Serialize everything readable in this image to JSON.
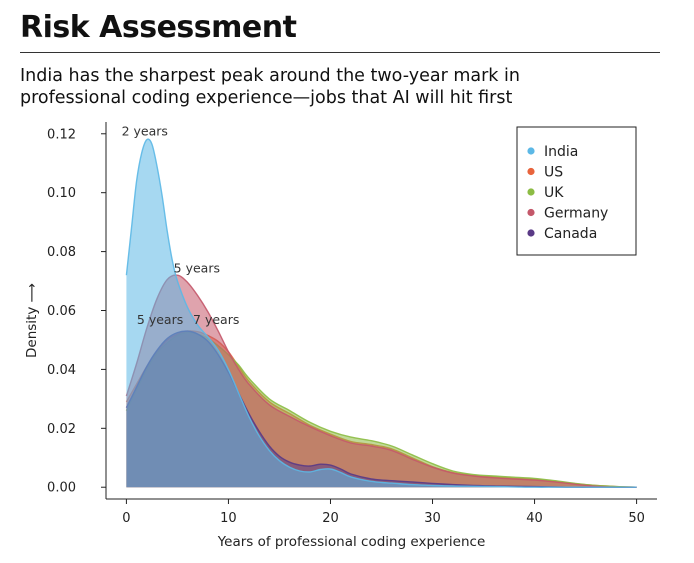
{
  "header": {
    "title": "Risk Assessment",
    "subtitle_line1": "India has the sharpest peak around the two-year mark in",
    "subtitle_line2": "professional coding experience—jobs that AI will hit first"
  },
  "chart_data": {
    "type": "area",
    "xlabel": "Years of professional coding experience",
    "ylabel": "Density ⟶",
    "xlim": [
      -2,
      52
    ],
    "ylim": [
      -0.004,
      0.124
    ],
    "x_ticks": [
      0,
      10,
      20,
      30,
      40,
      50
    ],
    "y_ticks": [
      0.0,
      0.02,
      0.04,
      0.06,
      0.08,
      0.1,
      0.12
    ],
    "legend_position": "top-right",
    "grid": false,
    "series": [
      {
        "name": "US",
        "color": "#e8643c",
        "points": [
          [
            0,
            0.029
          ],
          [
            1,
            0.035
          ],
          [
            2,
            0.041
          ],
          [
            3,
            0.046
          ],
          [
            4,
            0.05
          ],
          [
            5,
            0.052
          ],
          [
            6,
            0.053
          ],
          [
            7,
            0.0528
          ],
          [
            8,
            0.0515
          ],
          [
            9,
            0.0495
          ],
          [
            10,
            0.046
          ],
          [
            11,
            0.041
          ],
          [
            12,
            0.036
          ],
          [
            14,
            0.029
          ],
          [
            16,
            0.025
          ],
          [
            18,
            0.021
          ],
          [
            20,
            0.018
          ],
          [
            22,
            0.0155
          ],
          [
            24,
            0.0145
          ],
          [
            26,
            0.013
          ],
          [
            28,
            0.01
          ],
          [
            30,
            0.007
          ],
          [
            32,
            0.005
          ],
          [
            34,
            0.004
          ],
          [
            36,
            0.0035
          ],
          [
            38,
            0.003
          ],
          [
            40,
            0.0027
          ],
          [
            42,
            0.002
          ],
          [
            44,
            0.0012
          ],
          [
            46,
            0.0006
          ],
          [
            48,
            0.0002
          ],
          [
            50,
            0.0
          ]
        ]
      },
      {
        "name": "UK",
        "color": "#8cbc44",
        "points": [
          [
            0,
            0.026
          ],
          [
            1,
            0.033
          ],
          [
            2,
            0.04
          ],
          [
            3,
            0.0455
          ],
          [
            4,
            0.049
          ],
          [
            5,
            0.0515
          ],
          [
            6,
            0.0525
          ],
          [
            7,
            0.052
          ],
          [
            8,
            0.0505
          ],
          [
            9,
            0.048
          ],
          [
            10,
            0.045
          ],
          [
            11,
            0.0415
          ],
          [
            12,
            0.037
          ],
          [
            14,
            0.03
          ],
          [
            16,
            0.026
          ],
          [
            18,
            0.022
          ],
          [
            20,
            0.019
          ],
          [
            22,
            0.017
          ],
          [
            24,
            0.0158
          ],
          [
            26,
            0.014
          ],
          [
            28,
            0.011
          ],
          [
            30,
            0.008
          ],
          [
            32,
            0.0055
          ],
          [
            34,
            0.0043
          ],
          [
            36,
            0.0038
          ],
          [
            38,
            0.0034
          ],
          [
            40,
            0.003
          ],
          [
            42,
            0.0022
          ],
          [
            44,
            0.0013
          ],
          [
            46,
            0.0006
          ],
          [
            48,
            0.0002
          ],
          [
            50,
            0.0
          ]
        ]
      },
      {
        "name": "Germany",
        "color": "#c4586a",
        "points": [
          [
            0,
            0.031
          ],
          [
            1,
            0.042
          ],
          [
            2,
            0.054
          ],
          [
            3,
            0.064
          ],
          [
            4,
            0.0705
          ],
          [
            5,
            0.072
          ],
          [
            6,
            0.0695
          ],
          [
            7,
            0.065
          ],
          [
            8,
            0.0595
          ],
          [
            9,
            0.053
          ],
          [
            10,
            0.046
          ],
          [
            11,
            0.04
          ],
          [
            12,
            0.035
          ],
          [
            14,
            0.028
          ],
          [
            16,
            0.024
          ],
          [
            18,
            0.0205
          ],
          [
            20,
            0.0175
          ],
          [
            22,
            0.015
          ],
          [
            24,
            0.014
          ],
          [
            26,
            0.0125
          ],
          [
            28,
            0.0095
          ],
          [
            30,
            0.0068
          ],
          [
            32,
            0.0048
          ],
          [
            34,
            0.0038
          ],
          [
            36,
            0.0032
          ],
          [
            38,
            0.0028
          ],
          [
            40,
            0.0024
          ],
          [
            42,
            0.0018
          ],
          [
            44,
            0.001
          ],
          [
            46,
            0.0003
          ],
          [
            48,
            0.0
          ],
          [
            50,
            0.0
          ]
        ]
      },
      {
        "name": "Canada",
        "color": "#5a3a86",
        "points": [
          [
            0,
            0.027
          ],
          [
            1,
            0.034
          ],
          [
            2,
            0.041
          ],
          [
            3,
            0.0465
          ],
          [
            4,
            0.0505
          ],
          [
            5,
            0.0525
          ],
          [
            6,
            0.053
          ],
          [
            7,
            0.052
          ],
          [
            8,
            0.0495
          ],
          [
            9,
            0.045
          ],
          [
            10,
            0.039
          ],
          [
            11,
            0.032
          ],
          [
            12,
            0.025
          ],
          [
            13,
            0.019
          ],
          [
            14,
            0.014
          ],
          [
            15,
            0.0105
          ],
          [
            16,
            0.0085
          ],
          [
            17,
            0.0075
          ],
          [
            18,
            0.0072
          ],
          [
            19,
            0.0078
          ],
          [
            20,
            0.0075
          ],
          [
            21,
            0.0062
          ],
          [
            22,
            0.0045
          ],
          [
            24,
            0.0028
          ],
          [
            26,
            0.0022
          ],
          [
            28,
            0.0018
          ],
          [
            30,
            0.0013
          ],
          [
            32,
            0.0009
          ],
          [
            34,
            0.0006
          ],
          [
            36,
            0.0004
          ],
          [
            38,
            0.0003
          ],
          [
            40,
            0.0002
          ],
          [
            42,
            0.0001
          ],
          [
            44,
            0.0
          ],
          [
            46,
            0.0
          ],
          [
            48,
            0.0
          ],
          [
            50,
            0.0
          ]
        ]
      },
      {
        "name": "India",
        "color": "#5cb8e6",
        "points": [
          [
            0,
            0.072
          ],
          [
            0.5,
            0.088
          ],
          [
            1,
            0.104
          ],
          [
            1.5,
            0.1135
          ],
          [
            2,
            0.118
          ],
          [
            2.5,
            0.1165
          ],
          [
            3,
            0.109
          ],
          [
            3.5,
            0.099
          ],
          [
            4,
            0.087
          ],
          [
            4.5,
            0.077
          ],
          [
            5,
            0.07
          ],
          [
            6,
            0.061
          ],
          [
            7,
            0.055
          ],
          [
            8,
            0.051
          ],
          [
            9,
            0.0465
          ],
          [
            10,
            0.04
          ],
          [
            11,
            0.032
          ],
          [
            12,
            0.024
          ],
          [
            13,
            0.0175
          ],
          [
            14,
            0.0125
          ],
          [
            15,
            0.009
          ],
          [
            16,
            0.0068
          ],
          [
            17,
            0.0055
          ],
          [
            18,
            0.0052
          ],
          [
            19,
            0.006
          ],
          [
            20,
            0.0062
          ],
          [
            21,
            0.005
          ],
          [
            22,
            0.0035
          ],
          [
            24,
            0.002
          ],
          [
            26,
            0.0014
          ],
          [
            28,
            0.0009
          ],
          [
            30,
            0.0006
          ],
          [
            32,
            0.0004
          ],
          [
            34,
            0.0003
          ],
          [
            36,
            0.0002
          ],
          [
            38,
            0.0001
          ],
          [
            40,
            0.0
          ],
          [
            42,
            0.0
          ],
          [
            44,
            0.0
          ],
          [
            46,
            0.0
          ],
          [
            48,
            0.0
          ],
          [
            50,
            0.0
          ]
        ]
      }
    ],
    "legend_order": [
      "India",
      "US",
      "UK",
      "Germany",
      "Canada"
    ],
    "annotations": [
      {
        "text": "2 years",
        "x": 1.8,
        "y": 0.118
      },
      {
        "text": "5 years",
        "x": 6.9,
        "y": 0.0715
      },
      {
        "text": "5 years",
        "x": 3.3,
        "y": 0.054
      },
      {
        "text": "7 years",
        "x": 8.8,
        "y": 0.054
      }
    ]
  }
}
